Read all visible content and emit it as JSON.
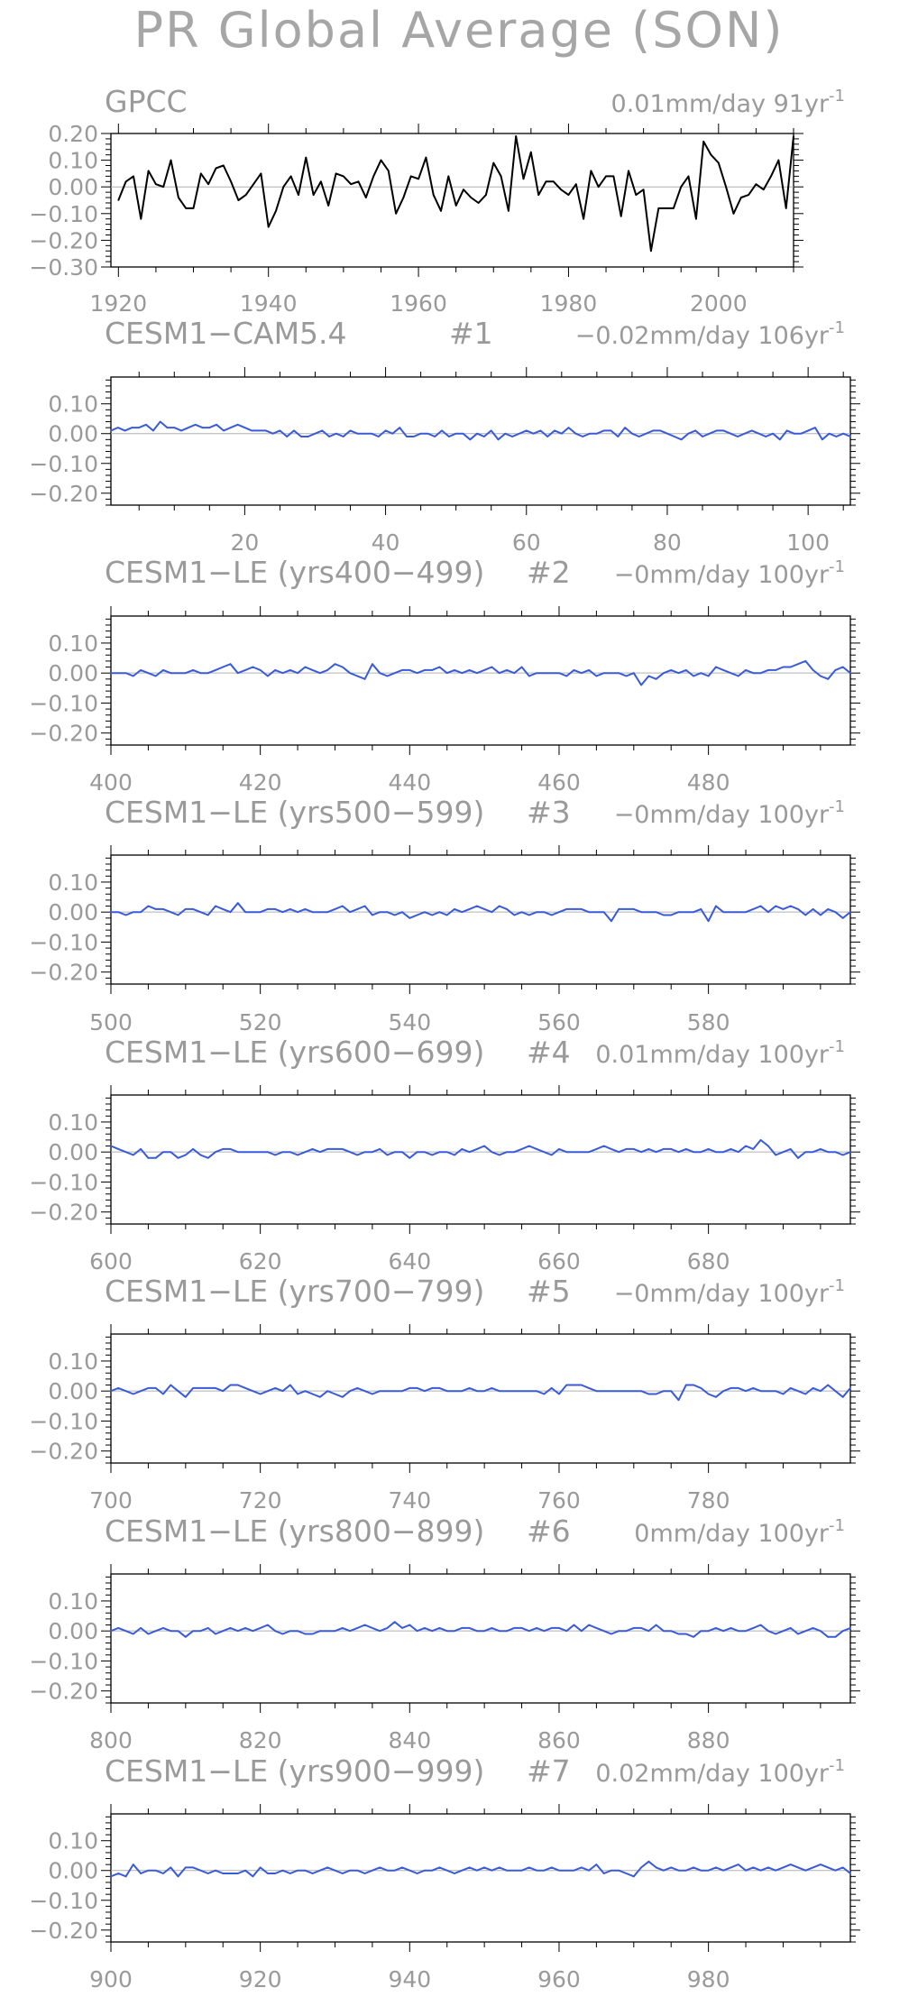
{
  "title": "PR Global Average (SON)",
  "chart_data": [
    {
      "type": "line",
      "panel": "GPCC",
      "left_label": "GPCC",
      "mid_label": "",
      "right_label": "0.01mm/day 91yr",
      "right_label_exp": "-1",
      "x_start": 1920,
      "xlim": [
        1919,
        2010
      ],
      "ylim": [
        -0.3,
        0.2
      ],
      "yticks": [
        -0.3,
        -0.2,
        -0.1,
        0.0,
        0.1,
        0.2
      ],
      "ytick_labels": [
        "−0.30",
        "−0.20",
        "−0.10",
        "0.00",
        "0.10",
        "0.20"
      ],
      "xticks": [
        1920,
        1940,
        1960,
        1980,
        2000
      ],
      "xtick_labels": [
        "1920",
        "1940",
        "1960",
        "1980",
        "2000"
      ],
      "color": "#000000",
      "values": [
        -0.05,
        0.02,
        0.04,
        -0.12,
        0.06,
        0.01,
        0.0,
        0.1,
        -0.04,
        -0.08,
        -0.08,
        0.05,
        0.01,
        0.07,
        0.08,
        0.02,
        -0.05,
        -0.03,
        0.01,
        0.05,
        -0.15,
        -0.09,
        0.0,
        0.04,
        -0.03,
        0.11,
        -0.03,
        0.02,
        -0.07,
        0.05,
        0.04,
        0.01,
        0.02,
        -0.04,
        0.04,
        0.1,
        0.06,
        -0.1,
        -0.04,
        0.04,
        0.03,
        0.11,
        -0.03,
        -0.09,
        0.04,
        -0.07,
        -0.01,
        -0.04,
        -0.06,
        -0.03,
        0.09,
        0.04,
        -0.09,
        0.19,
        0.03,
        0.13,
        -0.03,
        0.02,
        0.02,
        -0.01,
        -0.03,
        0.01,
        -0.12,
        0.06,
        0.0,
        0.04,
        0.04,
        -0.11,
        0.06,
        -0.03,
        -0.01,
        -0.24,
        -0.08,
        -0.08,
        -0.08,
        0.0,
        0.04,
        -0.12,
        0.17,
        0.12,
        0.09,
        0.0,
        -0.1,
        -0.04,
        -0.03,
        0.01,
        -0.01,
        0.04,
        0.1,
        -0.08,
        0.19
      ]
    },
    {
      "type": "line",
      "panel": "CESM1-CAM5.4",
      "left_label": "CESM1−CAM5.4",
      "mid_label": "#1",
      "right_label": "−0.02mm/day 106yr",
      "right_label_exp": "-1",
      "x_start": 1,
      "xlim": [
        1,
        106
      ],
      "ylim": [
        -0.24,
        0.19
      ],
      "yticks": [
        -0.2,
        -0.1,
        0.0,
        0.1
      ],
      "ytick_labels": [
        "−0.20",
        "−0.10",
        "0.00",
        "0.10"
      ],
      "xticks": [
        20,
        40,
        60,
        80,
        100
      ],
      "xtick_labels": [
        "20",
        "40",
        "60",
        "80",
        "100"
      ],
      "color": "#3a5bd9",
      "values": [
        0.01,
        0.02,
        0.01,
        0.02,
        0.02,
        0.03,
        0.01,
        0.04,
        0.02,
        0.02,
        0.01,
        0.02,
        0.03,
        0.02,
        0.02,
        0.03,
        0.01,
        0.02,
        0.03,
        0.02,
        0.01,
        0.01,
        0.01,
        0.0,
        0.01,
        -0.01,
        0.01,
        -0.01,
        -0.01,
        0.0,
        0.01,
        -0.01,
        0.0,
        -0.01,
        0.01,
        0.0,
        0.0,
        0.0,
        -0.01,
        0.01,
        0.0,
        0.02,
        -0.01,
        -0.01,
        0.0,
        0.0,
        -0.01,
        0.01,
        -0.01,
        0.0,
        0.0,
        -0.02,
        0.0,
        -0.01,
        0.01,
        -0.02,
        0.0,
        -0.01,
        0.0,
        0.01,
        0.0,
        0.01,
        -0.01,
        0.01,
        0.0,
        0.02,
        0.0,
        -0.01,
        0.0,
        0.0,
        0.01,
        0.01,
        -0.01,
        0.02,
        0.0,
        -0.01,
        0.0,
        0.01,
        0.01,
        0.0,
        -0.01,
        -0.02,
        0.0,
        0.01,
        -0.01,
        0.0,
        0.01,
        0.01,
        0.0,
        -0.01,
        0.0,
        0.01,
        0.0,
        -0.01,
        0.0,
        -0.02,
        0.01,
        0.0,
        0.0,
        0.01,
        0.02,
        -0.02,
        0.0,
        -0.01,
        0.0,
        -0.01
      ]
    },
    {
      "type": "line",
      "panel": "CESM1-LE (yrs400-499)",
      "left_label": "CESM1−LE (yrs400−499)",
      "mid_label": "#2",
      "right_label": "−0mm/day 100yr",
      "right_label_exp": "-1",
      "x_start": 400,
      "xlim": [
        400,
        499
      ],
      "ylim": [
        -0.24,
        0.19
      ],
      "yticks": [
        -0.2,
        -0.1,
        0.0,
        0.1
      ],
      "ytick_labels": [
        "−0.20",
        "−0.10",
        "0.00",
        "0.10"
      ],
      "xticks": [
        400,
        420,
        440,
        460,
        480
      ],
      "xtick_labels": [
        "400",
        "420",
        "440",
        "460",
        "480"
      ],
      "color": "#3a5bd9",
      "values": [
        0.0,
        0.0,
        0.0,
        -0.01,
        0.01,
        0.0,
        -0.01,
        0.01,
        0.0,
        0.0,
        0.0,
        0.01,
        0.0,
        0.0,
        0.01,
        0.02,
        0.03,
        0.0,
        0.01,
        0.02,
        0.01,
        -0.01,
        0.01,
        0.0,
        0.01,
        0.0,
        0.02,
        0.01,
        0.0,
        0.01,
        0.03,
        0.02,
        0.0,
        -0.01,
        -0.02,
        0.03,
        0.0,
        -0.01,
        0.0,
        0.01,
        0.01,
        0.0,
        0.01,
        0.01,
        0.02,
        0.0,
        0.01,
        0.0,
        0.01,
        0.0,
        0.01,
        0.02,
        0.0,
        0.01,
        0.0,
        0.02,
        -0.01,
        0.0,
        0.0,
        0.0,
        0.0,
        -0.01,
        0.01,
        0.0,
        0.01,
        -0.01,
        0.0,
        0.0,
        0.0,
        -0.01,
        0.0,
        -0.04,
        -0.01,
        -0.02,
        0.0,
        0.01,
        0.0,
        0.01,
        -0.01,
        0.0,
        -0.01,
        0.02,
        0.01,
        0.0,
        -0.01,
        0.01,
        0.0,
        0.0,
        0.01,
        0.01,
        0.02,
        0.02,
        0.03,
        0.04,
        0.01,
        -0.01,
        -0.02,
        0.01,
        0.02,
        0.0
      ]
    },
    {
      "type": "line",
      "panel": "CESM1-LE (yrs500-599)",
      "left_label": "CESM1−LE (yrs500−599)",
      "mid_label": "#3",
      "right_label": "−0mm/day 100yr",
      "right_label_exp": "-1",
      "x_start": 500,
      "xlim": [
        500,
        599
      ],
      "ylim": [
        -0.24,
        0.19
      ],
      "yticks": [
        -0.2,
        -0.1,
        0.0,
        0.1
      ],
      "ytick_labels": [
        "−0.20",
        "−0.10",
        "0.00",
        "0.10"
      ],
      "xticks": [
        500,
        520,
        540,
        560,
        580
      ],
      "xtick_labels": [
        "500",
        "520",
        "540",
        "560",
        "580"
      ],
      "color": "#3a5bd9",
      "values": [
        0.0,
        0.0,
        -0.01,
        0.0,
        0.0,
        0.02,
        0.01,
        0.01,
        0.0,
        -0.01,
        0.01,
        0.01,
        0.0,
        -0.01,
        0.02,
        0.01,
        0.0,
        0.03,
        0.0,
        0.0,
        0.0,
        0.01,
        0.01,
        0.0,
        0.01,
        0.0,
        0.01,
        0.0,
        0.0,
        0.0,
        0.01,
        0.02,
        0.0,
        0.01,
        0.02,
        -0.01,
        0.0,
        0.0,
        -0.01,
        0.0,
        -0.02,
        -0.01,
        0.0,
        -0.01,
        0.0,
        -0.01,
        0.01,
        0.0,
        0.01,
        0.02,
        0.01,
        0.0,
        0.02,
        0.01,
        -0.01,
        0.0,
        -0.01,
        0.0,
        0.0,
        -0.01,
        0.0,
        0.01,
        0.01,
        0.01,
        0.0,
        0.0,
        0.0,
        -0.03,
        0.01,
        0.01,
        0.01,
        0.0,
        0.0,
        0.0,
        -0.01,
        -0.01,
        0.0,
        0.0,
        0.0,
        0.01,
        -0.03,
        0.02,
        0.0,
        0.0,
        0.0,
        0.0,
        0.01,
        0.02,
        0.0,
        0.02,
        0.01,
        0.02,
        0.01,
        -0.01,
        0.01,
        -0.01,
        0.01,
        0.0,
        -0.02,
        0.0
      ]
    },
    {
      "type": "line",
      "panel": "CESM1-LE (yrs600-699)",
      "left_label": "CESM1−LE (yrs600−699)",
      "mid_label": "#4",
      "right_label": "0.01mm/day 100yr",
      "right_label_exp": "-1",
      "x_start": 600,
      "xlim": [
        600,
        699
      ],
      "ylim": [
        -0.24,
        0.19
      ],
      "yticks": [
        -0.2,
        -0.1,
        0.0,
        0.1
      ],
      "ytick_labels": [
        "−0.20",
        "−0.10",
        "0.00",
        "0.10"
      ],
      "xticks": [
        600,
        620,
        640,
        660,
        680
      ],
      "xtick_labels": [
        "600",
        "620",
        "640",
        "660",
        "680"
      ],
      "color": "#3a5bd9",
      "values": [
        0.02,
        0.01,
        0.0,
        -0.01,
        0.01,
        -0.02,
        -0.02,
        0.0,
        0.0,
        -0.02,
        -0.01,
        0.01,
        -0.01,
        -0.02,
        0.0,
        0.01,
        0.01,
        0.0,
        0.0,
        0.0,
        0.0,
        0.0,
        -0.01,
        0.0,
        0.0,
        -0.01,
        0.0,
        0.01,
        0.0,
        0.01,
        0.01,
        0.01,
        0.0,
        -0.01,
        0.0,
        0.0,
        0.01,
        -0.01,
        0.0,
        0.0,
        -0.02,
        0.0,
        0.0,
        -0.01,
        0.0,
        0.0,
        -0.01,
        0.01,
        0.0,
        0.01,
        0.02,
        0.0,
        -0.01,
        0.0,
        0.0,
        0.01,
        0.02,
        0.01,
        0.0,
        -0.01,
        0.01,
        0.0,
        0.0,
        0.0,
        0.0,
        0.01,
        0.02,
        0.01,
        0.0,
        0.01,
        0.01,
        0.0,
        0.01,
        0.0,
        0.01,
        0.01,
        0.0,
        0.01,
        0.0,
        0.0,
        0.01,
        0.0,
        0.0,
        0.01,
        0.0,
        0.02,
        0.01,
        0.04,
        0.02,
        -0.01,
        0.0,
        0.01,
        -0.02,
        0.0,
        0.0,
        0.01,
        0.0,
        0.0,
        -0.01,
        0.0
      ]
    },
    {
      "type": "line",
      "panel": "CESM1-LE (yrs700-799)",
      "left_label": "CESM1−LE (yrs700−799)",
      "mid_label": "#5",
      "right_label": "−0mm/day 100yr",
      "right_label_exp": "-1",
      "x_start": 700,
      "xlim": [
        700,
        799
      ],
      "ylim": [
        -0.24,
        0.19
      ],
      "yticks": [
        -0.2,
        -0.1,
        0.0,
        0.1
      ],
      "ytick_labels": [
        "−0.20",
        "−0.10",
        "0.00",
        "0.10"
      ],
      "xticks": [
        700,
        720,
        740,
        760,
        780
      ],
      "xtick_labels": [
        "700",
        "720",
        "740",
        "760",
        "780"
      ],
      "color": "#3a5bd9",
      "values": [
        0.0,
        0.01,
        0.0,
        -0.01,
        0.0,
        0.01,
        0.01,
        -0.01,
        0.02,
        0.0,
        -0.02,
        0.01,
        0.01,
        0.01,
        0.01,
        0.0,
        0.02,
        0.02,
        0.01,
        0.0,
        -0.01,
        0.0,
        0.01,
        0.0,
        0.02,
        -0.01,
        0.0,
        -0.01,
        -0.02,
        0.0,
        -0.01,
        -0.02,
        0.0,
        0.01,
        0.0,
        -0.01,
        0.0,
        0.0,
        0.0,
        0.0,
        0.01,
        0.01,
        0.0,
        0.01,
        0.01,
        0.0,
        0.0,
        0.0,
        0.01,
        0.0,
        0.0,
        0.01,
        0.0,
        0.0,
        0.0,
        0.0,
        0.0,
        0.0,
        -0.01,
        0.01,
        -0.01,
        0.02,
        0.02,
        0.02,
        0.01,
        0.0,
        0.0,
        0.0,
        0.0,
        0.0,
        0.0,
        0.0,
        -0.01,
        -0.01,
        0.0,
        0.0,
        -0.03,
        0.02,
        0.02,
        0.01,
        -0.01,
        -0.02,
        0.0,
        0.01,
        0.01,
        0.0,
        0.01,
        0.0,
        0.0,
        0.0,
        -0.01,
        0.01,
        0.0,
        -0.01,
        0.01,
        0.0,
        0.02,
        0.0,
        -0.02,
        0.01
      ]
    },
    {
      "type": "line",
      "panel": "CESM1-LE (yrs800-899)",
      "left_label": "CESM1−LE (yrs800−899)",
      "mid_label": "#6",
      "right_label": "0mm/day 100yr",
      "right_label_exp": "-1",
      "x_start": 800,
      "xlim": [
        800,
        899
      ],
      "ylim": [
        -0.24,
        0.19
      ],
      "yticks": [
        -0.2,
        -0.1,
        0.0,
        0.1
      ],
      "ytick_labels": [
        "−0.20",
        "−0.10",
        "0.00",
        "0.10"
      ],
      "xticks": [
        800,
        820,
        840,
        860,
        880
      ],
      "xtick_labels": [
        "800",
        "820",
        "840",
        "860",
        "880"
      ],
      "color": "#3a5bd9",
      "values": [
        0.0,
        0.01,
        0.0,
        -0.01,
        0.01,
        -0.01,
        0.0,
        0.01,
        0.0,
        0.0,
        -0.02,
        0.0,
        0.0,
        0.01,
        -0.01,
        0.0,
        0.01,
        0.0,
        0.01,
        0.0,
        0.01,
        0.02,
        0.0,
        -0.01,
        0.0,
        0.0,
        -0.01,
        -0.01,
        0.0,
        0.0,
        0.0,
        0.01,
        0.0,
        0.01,
        0.02,
        0.01,
        0.0,
        0.01,
        0.03,
        0.01,
        0.02,
        0.0,
        0.01,
        0.0,
        0.01,
        0.0,
        0.0,
        0.01,
        0.01,
        0.0,
        0.0,
        0.01,
        0.0,
        0.0,
        0.01,
        0.01,
        0.0,
        0.01,
        0.0,
        0.01,
        0.01,
        0.0,
        0.02,
        0.0,
        0.02,
        0.01,
        0.0,
        -0.01,
        0.0,
        0.0,
        0.01,
        0.01,
        0.0,
        0.02,
        0.0,
        0.0,
        -0.01,
        -0.01,
        -0.02,
        0.0,
        0.0,
        0.01,
        0.0,
        0.01,
        0.0,
        0.0,
        0.01,
        0.02,
        0.0,
        -0.01,
        0.0,
        0.01,
        -0.01,
        0.0,
        0.01,
        0.0,
        -0.02,
        -0.02,
        0.0,
        0.01
      ]
    },
    {
      "type": "line",
      "panel": "CESM1-LE (yrs900-999)",
      "left_label": "CESM1−LE (yrs900−999)",
      "mid_label": "#7",
      "right_label": "0.02mm/day 100yr",
      "right_label_exp": "-1",
      "x_start": 900,
      "xlim": [
        900,
        999
      ],
      "ylim": [
        -0.24,
        0.19
      ],
      "yticks": [
        -0.2,
        -0.1,
        0.0,
        0.1
      ],
      "ytick_labels": [
        "−0.20",
        "−0.10",
        "0.00",
        "0.10"
      ],
      "xticks": [
        900,
        920,
        940,
        960,
        980
      ],
      "xtick_labels": [
        "900",
        "920",
        "940",
        "960",
        "980"
      ],
      "color": "#3a5bd9",
      "values": [
        -0.02,
        -0.01,
        -0.02,
        0.02,
        -0.01,
        0.0,
        0.0,
        -0.01,
        0.01,
        -0.02,
        0.01,
        0.01,
        0.0,
        -0.01,
        0.0,
        -0.01,
        -0.01,
        -0.01,
        0.0,
        -0.02,
        0.01,
        -0.01,
        -0.01,
        0.0,
        -0.01,
        0.0,
        0.0,
        -0.01,
        0.0,
        0.01,
        0.0,
        -0.01,
        0.0,
        0.0,
        -0.01,
        0.0,
        0.01,
        0.0,
        0.0,
        0.01,
        0.0,
        -0.01,
        0.0,
        0.0,
        0.01,
        0.0,
        -0.01,
        0.0,
        0.01,
        0.0,
        0.01,
        0.0,
        0.01,
        0.0,
        0.0,
        0.0,
        0.01,
        0.0,
        0.0,
        0.01,
        0.0,
        0.0,
        0.0,
        0.01,
        0.0,
        0.02,
        -0.01,
        0.0,
        0.0,
        -0.01,
        -0.02,
        0.01,
        0.03,
        0.01,
        0.0,
        0.01,
        0.0,
        0.0,
        0.01,
        0.0,
        0.0,
        0.01,
        0.0,
        0.01,
        0.02,
        0.0,
        0.01,
        0.0,
        0.01,
        0.0,
        0.01,
        0.02,
        0.01,
        0.0,
        0.01,
        0.02,
        0.01,
        0.0,
        0.01,
        -0.01
      ]
    }
  ]
}
